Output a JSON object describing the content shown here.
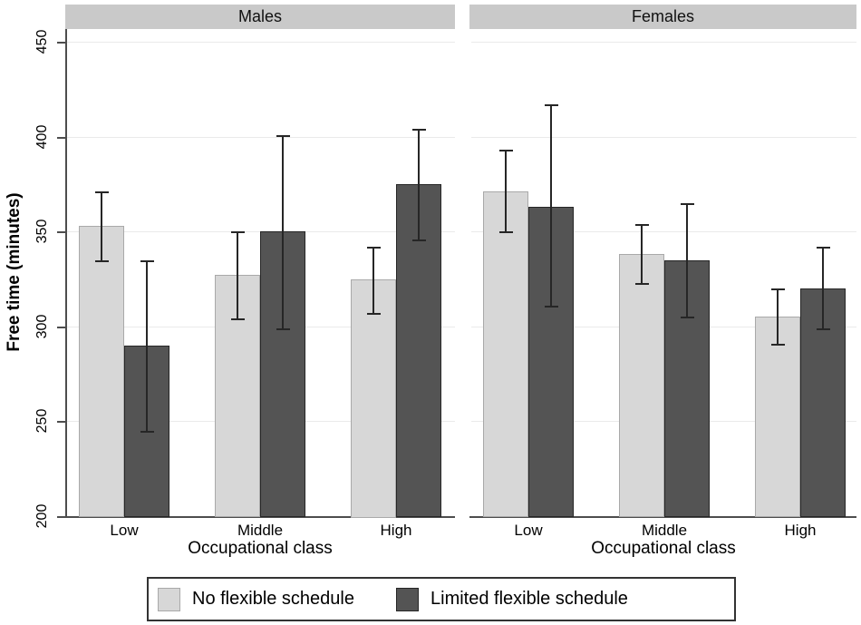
{
  "figure": {
    "y_axis_title": "Free time (minutes)",
    "x_axis_title": "Occupational class",
    "panel_titles": [
      "Males",
      "Females"
    ],
    "legend": [
      {
        "label": "No flexible schedule",
        "color": "#d7d7d7",
        "border": "#a9a9a9"
      },
      {
        "label": "Limited flexible schedule",
        "color": "#545454",
        "border": "#262626"
      }
    ],
    "colors": {
      "header_band": "#c9c9c9",
      "gridline": "#eaeaea",
      "axis": "#4d4d4d",
      "error_bar": "#262626",
      "background": "#ffffff"
    }
  },
  "chart_data": [
    {
      "type": "bar",
      "title": "Males",
      "categories": [
        "Low",
        "Middle",
        "High"
      ],
      "series": [
        {
          "name": "No flexible schedule",
          "values": [
            353,
            327,
            325
          ],
          "ci_low": [
            335,
            304,
            307
          ],
          "ci_high": [
            371,
            350,
            342
          ]
        },
        {
          "name": "Limited flexible schedule",
          "values": [
            290,
            350,
            375
          ],
          "ci_low": [
            245,
            299,
            346
          ],
          "ci_high": [
            335,
            401,
            404
          ]
        }
      ],
      "xlabel": "Occupational class",
      "ylabel": "Free time (minutes)",
      "ylim": [
        200,
        455
      ],
      "yticks": [
        200,
        250,
        300,
        350,
        400,
        450
      ],
      "grid": true,
      "legend_position": "bottom"
    },
    {
      "type": "bar",
      "title": "Females",
      "categories": [
        "Low",
        "Middle",
        "High"
      ],
      "series": [
        {
          "name": "No flexible schedule",
          "values": [
            371,
            338,
            305
          ],
          "ci_low": [
            350,
            323,
            291
          ],
          "ci_high": [
            393,
            354,
            320
          ]
        },
        {
          "name": "Limited flexible schedule",
          "values": [
            363,
            335,
            320
          ],
          "ci_low": [
            311,
            305,
            299
          ],
          "ci_high": [
            417,
            365,
            342
          ]
        }
      ],
      "xlabel": "Occupational class",
      "ylabel": "Free time (minutes)",
      "ylim": [
        200,
        455
      ],
      "yticks": [
        200,
        250,
        300,
        350,
        400,
        450
      ],
      "grid": true,
      "legend_position": "bottom"
    }
  ]
}
